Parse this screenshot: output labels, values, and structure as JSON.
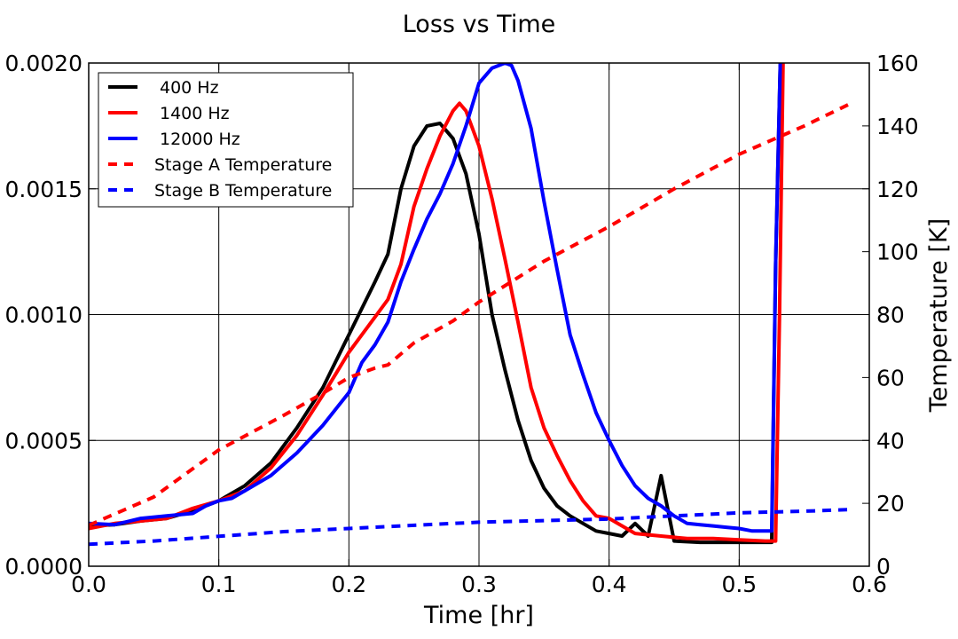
{
  "chart_data": {
    "type": "line",
    "title": "Loss vs Time",
    "xlabel": "Time [hr]",
    "ylabel_left": "",
    "ylabel_right": "Temperature [K]",
    "xlim": [
      0.0,
      0.6
    ],
    "ylim_left": [
      0.0,
      0.002
    ],
    "ylim_right": [
      0,
      160
    ],
    "x_ticks": [
      "0.0",
      "0.1",
      "0.2",
      "0.3",
      "0.4",
      "0.5",
      "0.6"
    ],
    "y_left_ticks": [
      "0.0000",
      "0.0005",
      "0.0010",
      "0.0015",
      "0.0020"
    ],
    "y_right_ticks": [
      "0",
      "20",
      "40",
      "60",
      "80",
      "100",
      "120",
      "140",
      "160"
    ],
    "grid": true,
    "legend_position": "top-left",
    "series": [
      {
        "name": "400 Hz",
        "color": "#000000",
        "style": "solid",
        "axis": "left",
        "x": [
          0.0,
          0.02,
          0.04,
          0.06,
          0.08,
          0.1,
          0.12,
          0.14,
          0.16,
          0.18,
          0.2,
          0.22,
          0.23,
          0.24,
          0.25,
          0.26,
          0.27,
          0.28,
          0.29,
          0.3,
          0.31,
          0.32,
          0.33,
          0.34,
          0.35,
          0.36,
          0.37,
          0.38,
          0.39,
          0.4,
          0.41,
          0.42,
          0.43,
          0.44,
          0.45,
          0.47,
          0.49,
          0.51,
          0.525,
          0.528,
          0.532
        ],
        "y": [
          0.00016,
          0.000165,
          0.00018,
          0.00019,
          0.00022,
          0.00026,
          0.00032,
          0.00041,
          0.00055,
          0.00071,
          0.00092,
          0.00113,
          0.00124,
          0.0015,
          0.00167,
          0.00175,
          0.00176,
          0.0017,
          0.00156,
          0.00132,
          0.001,
          0.00078,
          0.00058,
          0.00042,
          0.00031,
          0.00024,
          0.0002,
          0.00017,
          0.00014,
          0.00013,
          0.00012,
          0.00017,
          0.00012,
          0.00036,
          0.0001,
          9.5e-05,
          9.5e-05,
          9.5e-05,
          9.5e-05,
          0.0012,
          0.0021
        ]
      },
      {
        "name": "1400 Hz",
        "color": "#ff0000",
        "style": "solid",
        "axis": "left",
        "x": [
          0.0,
          0.02,
          0.04,
          0.06,
          0.08,
          0.1,
          0.12,
          0.14,
          0.16,
          0.18,
          0.2,
          0.22,
          0.23,
          0.24,
          0.25,
          0.26,
          0.27,
          0.28,
          0.285,
          0.29,
          0.3,
          0.31,
          0.32,
          0.33,
          0.34,
          0.35,
          0.36,
          0.37,
          0.38,
          0.39,
          0.4,
          0.42,
          0.44,
          0.46,
          0.48,
          0.5,
          0.52,
          0.528,
          0.531,
          0.534
        ],
        "y": [
          0.00015,
          0.00017,
          0.00018,
          0.00019,
          0.00023,
          0.00026,
          0.0003,
          0.00039,
          0.00052,
          0.00068,
          0.00085,
          0.00099,
          0.00106,
          0.0012,
          0.00143,
          0.00158,
          0.00171,
          0.00181,
          0.00184,
          0.00181,
          0.00167,
          0.00146,
          0.00122,
          0.00097,
          0.00071,
          0.00055,
          0.00044,
          0.00034,
          0.00026,
          0.0002,
          0.00019,
          0.00013,
          0.00012,
          0.00011,
          0.00011,
          0.000105,
          0.0001,
          0.0001,
          0.001,
          0.0021
        ]
      },
      {
        "name": "12000 Hz",
        "color": "#0000ff",
        "style": "solid",
        "axis": "left",
        "x": [
          0.0,
          0.02,
          0.04,
          0.06,
          0.08,
          0.09,
          0.1,
          0.11,
          0.12,
          0.14,
          0.16,
          0.18,
          0.2,
          0.21,
          0.22,
          0.23,
          0.24,
          0.25,
          0.26,
          0.27,
          0.28,
          0.29,
          0.3,
          0.31,
          0.32,
          0.325,
          0.33,
          0.34,
          0.35,
          0.36,
          0.37,
          0.38,
          0.39,
          0.4,
          0.41,
          0.42,
          0.43,
          0.44,
          0.45,
          0.46,
          0.47,
          0.48,
          0.49,
          0.5,
          0.51,
          0.52,
          0.525,
          0.528,
          0.532
        ],
        "y": [
          0.00017,
          0.000165,
          0.00019,
          0.0002,
          0.00021,
          0.00024,
          0.00026,
          0.00027,
          0.0003,
          0.00036,
          0.00045,
          0.00056,
          0.00069,
          0.00081,
          0.00088,
          0.00097,
          0.00113,
          0.00126,
          0.00138,
          0.00148,
          0.0016,
          0.00175,
          0.00192,
          0.00198,
          0.002,
          0.00199,
          0.00193,
          0.00174,
          0.00145,
          0.00118,
          0.00092,
          0.00076,
          0.00061,
          0.0005,
          0.0004,
          0.00032,
          0.00027,
          0.00024,
          0.0002,
          0.00017,
          0.000165,
          0.00016,
          0.000155,
          0.00015,
          0.00014,
          0.00014,
          0.00014,
          0.0012,
          0.0021
        ]
      },
      {
        "name": "Stage A Temperature",
        "color": "#ff0000",
        "style": "dashed",
        "axis": "right",
        "x": [
          0.0,
          0.05,
          0.1,
          0.15,
          0.18,
          0.2,
          0.22,
          0.23,
          0.25,
          0.28,
          0.3,
          0.35,
          0.4,
          0.45,
          0.5,
          0.55,
          0.585
        ],
        "y": [
          13,
          22,
          37,
          48,
          55,
          60,
          63,
          64,
          71,
          78,
          84,
          97,
          108,
          120,
          131,
          140,
          147
        ]
      },
      {
        "name": "Stage B Temperature",
        "color": "#0000ff",
        "style": "dashed",
        "axis": "right",
        "x": [
          0.0,
          0.05,
          0.1,
          0.15,
          0.2,
          0.25,
          0.3,
          0.35,
          0.4,
          0.45,
          0.5,
          0.55,
          0.585
        ],
        "y": [
          7,
          8,
          9.5,
          11,
          12,
          13,
          14,
          14.5,
          15,
          16,
          17,
          17.5,
          18
        ]
      }
    ]
  }
}
